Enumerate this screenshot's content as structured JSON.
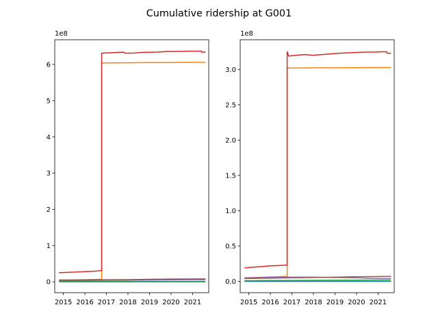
{
  "title": "Cumulative ridership at G001",
  "palette": [
    "#1f77b4",
    "#ff7f0e",
    "#2ca02c",
    "#d62728",
    "#9467bd",
    "#8c564b"
  ],
  "chart_data": [
    {
      "type": "line",
      "xlim": [
        2014.6,
        2021.75
      ],
      "ylim": [
        -0.3,
        6.68
      ],
      "y_multiplier": "1e8",
      "xticks": [
        {
          "value": 2015,
          "label": "2015"
        },
        {
          "value": 2016,
          "label": "2016"
        },
        {
          "value": 2017,
          "label": "2017"
        },
        {
          "value": 2018,
          "label": "2018"
        },
        {
          "value": 2019,
          "label": "2019"
        },
        {
          "value": 2020,
          "label": "2020"
        },
        {
          "value": 2021,
          "label": "2021"
        }
      ],
      "yticks": [
        {
          "value": 0,
          "label": "0"
        },
        {
          "value": 1,
          "label": "1"
        },
        {
          "value": 2,
          "label": "2"
        },
        {
          "value": 3,
          "label": "3"
        },
        {
          "value": 4,
          "label": "4"
        },
        {
          "value": 5,
          "label": "5"
        },
        {
          "value": 6,
          "label": "6"
        }
      ],
      "series": [
        {
          "color": "#1f77b4",
          "x": [
            2014.8,
            2016.8,
            2016.8,
            2021.6
          ],
          "y": [
            0.01,
            0.01,
            0.01,
            0.01
          ]
        },
        {
          "color": "#ff7f0e",
          "x": [
            2014.8,
            2016.77,
            2016.78,
            2016.78,
            2018,
            2019,
            2020,
            2021,
            2021.6
          ],
          "y": [
            0.04,
            0.07,
            0.07,
            6.04,
            6.045,
            6.05,
            6.052,
            6.055,
            6.055
          ]
        },
        {
          "color": "#2ca02c",
          "x": [
            2014.8,
            2021.6
          ],
          "y": [
            0.0,
            0.0
          ]
        },
        {
          "color": "#9467bd",
          "x": [
            2014.8,
            2016.8,
            2021.6
          ],
          "y": [
            0.03,
            0.04,
            0.06
          ]
        },
        {
          "color": "#8c564b",
          "x": [
            2014.8,
            2016.8,
            2018,
            2019,
            2020,
            2021,
            2021.6
          ],
          "y": [
            0.05,
            0.055,
            0.06,
            0.07,
            0.075,
            0.078,
            0.08
          ]
        },
        {
          "color": "#d62728",
          "x": [
            2014.8,
            2015.2,
            2015.6,
            2016.0,
            2016.4,
            2016.77,
            2016.78,
            2016.78,
            2017.2,
            2017.8,
            2017.85,
            2018.2,
            2018.6,
            2019.0,
            2019.4,
            2019.8,
            2020.2,
            2020.6,
            2021.0,
            2021.4,
            2021.42,
            2021.6
          ],
          "y": [
            0.25,
            0.26,
            0.27,
            0.28,
            0.29,
            0.31,
            0.31,
            6.31,
            6.32,
            6.34,
            6.31,
            6.31,
            6.33,
            6.335,
            6.34,
            6.355,
            6.355,
            6.36,
            6.365,
            6.365,
            6.34,
            6.34
          ]
        }
      ]
    },
    {
      "type": "line",
      "xlim": [
        2014.6,
        2021.75
      ],
      "ylim": [
        -0.16,
        3.42
      ],
      "y_multiplier": "1e8",
      "xticks": [
        {
          "value": 2015,
          "label": "2015"
        },
        {
          "value": 2016,
          "label": "2016"
        },
        {
          "value": 2017,
          "label": "2017"
        },
        {
          "value": 2018,
          "label": "2018"
        },
        {
          "value": 2019,
          "label": "2019"
        },
        {
          "value": 2020,
          "label": "2020"
        },
        {
          "value": 2021,
          "label": "2021"
        }
      ],
      "yticks": [
        {
          "value": 0,
          "label": "0.0"
        },
        {
          "value": 0.5,
          "label": "0.5"
        },
        {
          "value": 1.0,
          "label": "1.0"
        },
        {
          "value": 1.5,
          "label": "1.5"
        },
        {
          "value": 2.0,
          "label": "2.0"
        },
        {
          "value": 2.5,
          "label": "2.5"
        },
        {
          "value": 3.0,
          "label": "3.0"
        }
      ],
      "series": [
        {
          "color": "#1f77b4",
          "x": [
            2014.8,
            2021.6
          ],
          "y": [
            0.0,
            0.0
          ]
        },
        {
          "color": "#ff7f0e",
          "x": [
            2014.8,
            2016.77,
            2016.78,
            2016.78,
            2018,
            2019,
            2020,
            2021,
            2021.6
          ],
          "y": [
            0.05,
            0.07,
            0.07,
            3.02,
            3.022,
            3.024,
            3.025,
            3.027,
            3.027
          ]
        },
        {
          "color": "#2ca02c",
          "x": [
            2014.8,
            2021.6
          ],
          "y": [
            0.01,
            0.02
          ]
        },
        {
          "color": "#9467bd",
          "x": [
            2014.8,
            2016.8,
            2018,
            2019,
            2020,
            2021,
            2021.6
          ],
          "y": [
            0.05,
            0.06,
            0.06,
            0.055,
            0.05,
            0.04,
            0.04
          ]
        },
        {
          "color": "#8c564b",
          "x": [
            2014.8,
            2016.8,
            2018,
            2019,
            2020,
            2021,
            2021.6
          ],
          "y": [
            0.04,
            0.05,
            0.055,
            0.06,
            0.065,
            0.068,
            0.07
          ]
        },
        {
          "color": "#d62728",
          "x": [
            2014.8,
            2015.2,
            2015.6,
            2016.0,
            2016.4,
            2016.77,
            2016.78,
            2016.78,
            2016.85,
            2017.2,
            2017.6,
            2018.0,
            2018.4,
            2018.8,
            2019.2,
            2019.6,
            2020.0,
            2020.4,
            2020.8,
            2021.2,
            2021.4,
            2021.42,
            2021.6
          ],
          "y": [
            0.19,
            0.2,
            0.21,
            0.22,
            0.225,
            0.23,
            0.23,
            3.25,
            3.19,
            3.2,
            3.21,
            3.2,
            3.21,
            3.22,
            3.23,
            3.235,
            3.24,
            3.245,
            3.245,
            3.25,
            3.25,
            3.23,
            3.23
          ]
        }
      ]
    }
  ]
}
